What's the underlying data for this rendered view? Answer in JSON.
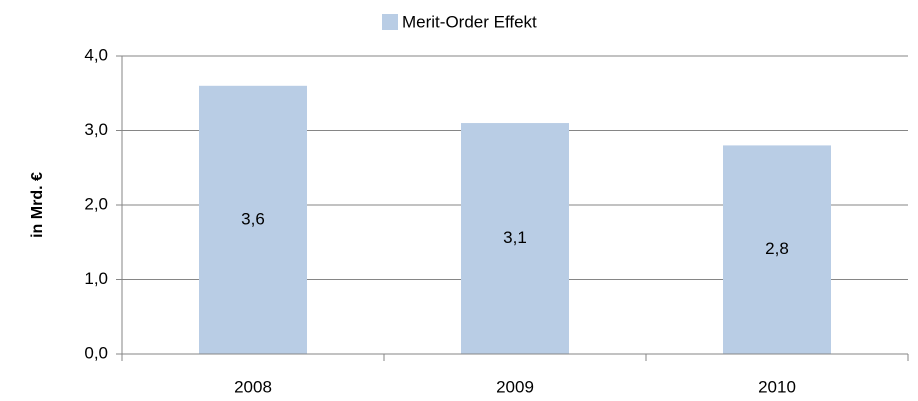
{
  "chart_data": {
    "type": "bar",
    "y_label": "in Mrd. €",
    "categories": [
      "2008",
      "2009",
      "2010"
    ],
    "series": [
      {
        "name": "Merit-Order Effekt",
        "color": "#b9cde5",
        "values": [
          3.6,
          3.1,
          2.8
        ],
        "value_labels": [
          "3,6",
          "3,1",
          "2,8"
        ]
      }
    ],
    "ylim": [
      0,
      4
    ],
    "yticks": [
      {
        "value": 0,
        "label": "0,0"
      },
      {
        "value": 1,
        "label": "1,0"
      },
      {
        "value": 2,
        "label": "2,0"
      },
      {
        "value": 3,
        "label": "3,0"
      },
      {
        "value": 4,
        "label": "4,0"
      }
    ],
    "grid": true,
    "legend": "top"
  }
}
